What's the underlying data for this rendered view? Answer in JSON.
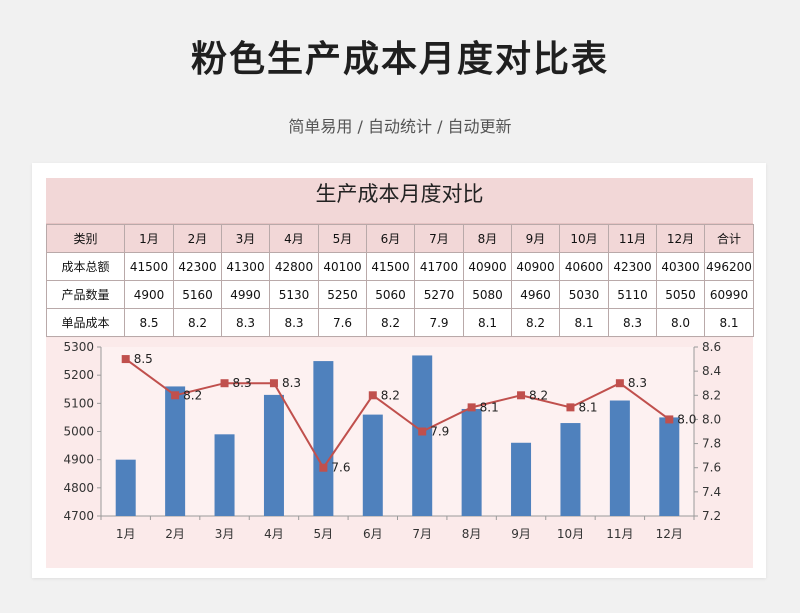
{
  "page": {
    "title": "粉色生产成本月度对比表",
    "subtitle": "简单易用 / 自动统计 / 自动更新"
  },
  "sheet": {
    "title": "生产成本月度对比",
    "columns": [
      "类别",
      "1月",
      "2月",
      "3月",
      "4月",
      "5月",
      "6月",
      "7月",
      "8月",
      "9月",
      "10月",
      "11月",
      "12月",
      "合计"
    ],
    "rows": [
      {
        "label": "成本总额",
        "values": [
          "41500",
          "42300",
          "41300",
          "42800",
          "40100",
          "41500",
          "41700",
          "40900",
          "40900",
          "40600",
          "42300",
          "40300",
          "496200"
        ]
      },
      {
        "label": "产品数量",
        "values": [
          "4900",
          "5160",
          "4990",
          "5130",
          "5250",
          "5060",
          "5270",
          "5080",
          "4960",
          "5030",
          "5110",
          "5050",
          "60990"
        ]
      },
      {
        "label": "单品成本",
        "values": [
          "8.5",
          "8.2",
          "8.3",
          "8.3",
          "7.6",
          "8.2",
          "7.9",
          "8.1",
          "8.2",
          "8.1",
          "8.3",
          "8.0",
          "8.1"
        ]
      }
    ]
  },
  "chart_data": {
    "type": "bar",
    "categories": [
      "1月",
      "2月",
      "3月",
      "4月",
      "5月",
      "6月",
      "7月",
      "8月",
      "9月",
      "10月",
      "11月",
      "12月"
    ],
    "series": [
      {
        "type": "bar",
        "axis": "left",
        "color": "#4f81bd",
        "values": [
          4900,
          5160,
          4990,
          5130,
          5250,
          5060,
          5270,
          5080,
          4960,
          5030,
          5110,
          5050
        ]
      },
      {
        "type": "line",
        "axis": "right",
        "color": "#c0504d",
        "values": [
          8.5,
          8.2,
          8.3,
          8.3,
          7.6,
          8.2,
          7.9,
          8.1,
          8.2,
          8.1,
          8.3,
          8.0
        ],
        "labels": [
          "8.5",
          "8.2",
          "8.3",
          "8.3",
          "7.6",
          "8.2",
          "7.9",
          "8.1",
          "8.2",
          "8.1",
          "8.3",
          "8.0"
        ]
      }
    ],
    "ylim_left": [
      4700,
      5300
    ],
    "yticks_left": [
      "4700",
      "4800",
      "4900",
      "5000",
      "5100",
      "5200",
      "5300"
    ],
    "ylim_right": [
      7.2,
      8.6
    ],
    "yticks_right": [
      "7.2",
      "7.4",
      "7.6",
      "7.8",
      "8.0",
      "8.2",
      "8.4",
      "8.6"
    ],
    "grid": false,
    "legend": "none"
  }
}
